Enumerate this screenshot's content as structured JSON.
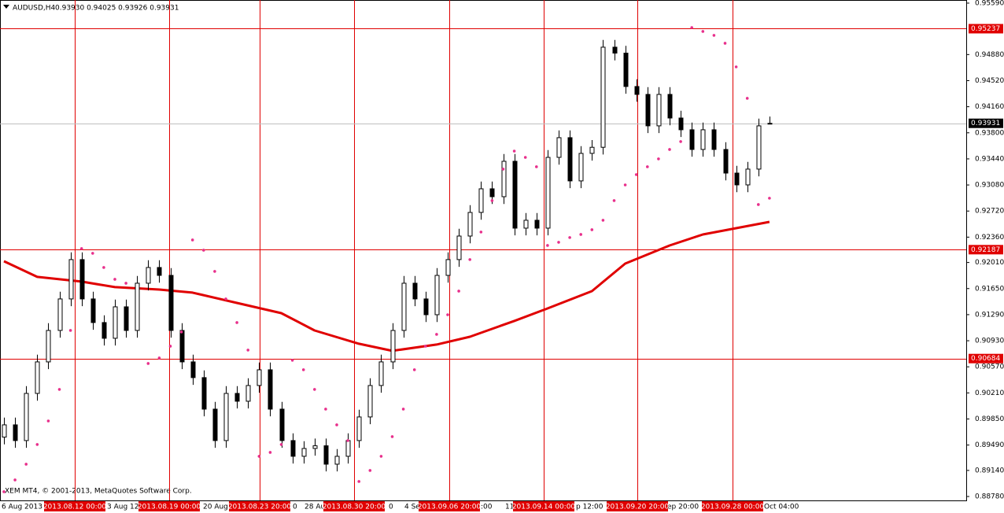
{
  "chart_data": {
    "type": "candlestick",
    "title": "AUDUSD,H4",
    "header_values": "0.93930 0.94025 0.93926 0.93931",
    "watermark": "XEM MT4, © 2001-2013, MetaQuotes Software Corp.",
    "open": [
      0.896,
      0.89769,
      0.89552,
      0.90203,
      0.90638,
      0.91072,
      0.91507,
      0.9205,
      0.91507,
      0.91181,
      0.90964,
      0.91398,
      0.91072,
      0.91724,
      0.91941,
      0.91832,
      0.91072,
      0.90638,
      0.90421,
      0.89986,
      0.89552,
      0.90203,
      0.90095,
      0.90312,
      0.90529,
      0.89986,
      0.89552,
      0.89335,
      0.89443,
      0.8948,
      0.89226,
      0.89335,
      0.89552,
      0.89878,
      0.90312,
      0.90638,
      0.91072,
      0.91724,
      0.91507,
      0.91289,
      0.91832,
      0.9205,
      0.92375,
      0.92701,
      0.93027,
      0.92918,
      0.93407,
      0.92484,
      0.92593,
      0.92484,
      0.93461,
      0.93733,
      0.93136,
      0.93516,
      0.936,
      0.94982,
      0.949,
      0.94439,
      0.9433,
      0.93896,
      0.9433,
      0.94004,
      0.93842,
      0.9357,
      0.93842,
      0.9357,
      0.93244,
      0.93081,
      0.93299,
      0.9393
    ],
    "high": [
      0.89869,
      0.89869,
      0.90303,
      0.90738,
      0.91172,
      0.91607,
      0.9215,
      0.9215,
      0.91607,
      0.91281,
      0.91498,
      0.91498,
      0.91824,
      0.92041,
      0.92041,
      0.91932,
      0.91172,
      0.90738,
      0.90521,
      0.90086,
      0.90303,
      0.90303,
      0.90412,
      0.90629,
      0.90629,
      0.90086,
      0.89652,
      0.89543,
      0.8958,
      0.8958,
      0.89435,
      0.89652,
      0.89978,
      0.90412,
      0.90738,
      0.91172,
      0.91824,
      0.91824,
      0.91607,
      0.91932,
      0.9215,
      0.92475,
      0.92801,
      0.93127,
      0.93127,
      0.93507,
      0.93507,
      0.92693,
      0.92693,
      0.93561,
      0.93833,
      0.93833,
      0.93616,
      0.937,
      0.95082,
      0.95082,
      0.95,
      0.94539,
      0.9443,
      0.9443,
      0.9443,
      0.94104,
      0.93942,
      0.93942,
      0.93942,
      0.9367,
      0.93344,
      0.93399,
      0.93996,
      0.94025
    ],
    "low": [
      0.895,
      0.89452,
      0.89452,
      0.90103,
      0.90538,
      0.90972,
      0.91407,
      0.91407,
      0.91081,
      0.90864,
      0.90864,
      0.90972,
      0.90972,
      0.91624,
      0.91732,
      0.90972,
      0.90538,
      0.90321,
      0.89886,
      0.89452,
      0.89452,
      0.89995,
      0.89995,
      0.90212,
      0.89886,
      0.89452,
      0.89235,
      0.89235,
      0.89343,
      0.89126,
      0.89126,
      0.89235,
      0.89452,
      0.89778,
      0.90212,
      0.90538,
      0.90972,
      0.91407,
      0.91189,
      0.91189,
      0.91732,
      0.9195,
      0.92275,
      0.92601,
      0.92818,
      0.92818,
      0.92384,
      0.92384,
      0.92384,
      0.92384,
      0.93361,
      0.93036,
      0.93036,
      0.93416,
      0.935,
      0.948,
      0.94339,
      0.9423,
      0.93796,
      0.93796,
      0.93904,
      0.93742,
      0.9347,
      0.9347,
      0.9347,
      0.93144,
      0.92981,
      0.92981,
      0.93199,
      0.93926
    ],
    "close": [
      0.89769,
      0.89552,
      0.90203,
      0.90638,
      0.91072,
      0.91507,
      0.9205,
      0.91507,
      0.91181,
      0.90964,
      0.91398,
      0.91072,
      0.91724,
      0.91941,
      0.91832,
      0.91072,
      0.90638,
      0.90421,
      0.89986,
      0.89552,
      0.90203,
      0.90095,
      0.90312,
      0.90529,
      0.89986,
      0.89552,
      0.89335,
      0.89443,
      0.8948,
      0.89226,
      0.89335,
      0.89552,
      0.89878,
      0.90312,
      0.90638,
      0.91072,
      0.91724,
      0.91507,
      0.91289,
      0.91832,
      0.9205,
      0.92375,
      0.92701,
      0.93027,
      0.92918,
      0.93407,
      0.92484,
      0.92593,
      0.92484,
      0.93461,
      0.93733,
      0.93136,
      0.93516,
      0.936,
      0.94982,
      0.949,
      0.94439,
      0.9433,
      0.93896,
      0.9433,
      0.94004,
      0.93842,
      0.9357,
      0.93842,
      0.9357,
      0.93244,
      0.93081,
      0.93299,
      0.93896,
      0.93931
    ],
    "sar": [
      0.88846,
      0.89009,
      0.89226,
      0.89498,
      0.89823,
      0.90258,
      0.91072,
      0.92202,
      0.92137,
      0.91941,
      0.91778,
      0.91724,
      null,
      0.90616,
      0.90692,
      0.90855,
      0.91051,
      0.92321,
      0.9218,
      0.91887,
      0.91507,
      0.91181,
      0.90801,
      0.89335,
      0.89389,
      0.89498,
      0.9066,
      0.90529,
      0.90258,
      0.89986,
      0.89769,
      0.89552,
      0.88987,
      0.89139,
      0.89335,
      0.89606,
      0.89986,
      0.90529,
      0.90855,
      0.91018,
      0.91289,
      0.91615,
      0.9205,
      0.9243,
      0.92864,
      0.93299,
      0.93548,
      0.93461,
      0.93331,
      0.92245,
      0.92289,
      0.92354,
      0.92397,
      0.92462,
      0.92593,
      0.92864,
      0.93081,
      0.93223,
      0.93331,
      0.9344,
      0.9357,
      0.93679,
      0.95253,
      0.95199,
      0.95145,
      0.95036,
      0.9471,
      0.94276,
      0.9281,
      0.92897
    ],
    "sar_color": "#e8308c",
    "ma": {
      "x": [
        0,
        3,
        7,
        10,
        14,
        17,
        21,
        25,
        28,
        32,
        35,
        39,
        42,
        46,
        49,
        53,
        56,
        60,
        63,
        69
      ],
      "values": [
        0.92028,
        0.91811,
        0.91746,
        0.9167,
        0.91637,
        0.91594,
        0.91452,
        0.91311,
        0.91072,
        0.90888,
        0.9079,
        0.90877,
        0.90985,
        0.91203,
        0.91376,
        0.91615,
        0.91995,
        0.92245,
        0.92397,
        0.92571
      ],
      "color": "#e00000"
    },
    "levels": [
      0.95237,
      0.92187,
      0.90684
    ],
    "level_color": "#e00000",
    "last_price": 0.93931,
    "ylim": [
      0.88726,
      0.95633
    ],
    "yticks": [
      {
        "value": 0.9559,
        "label": "0.95590"
      },
      {
        "value": 0.9488,
        "label": "0.94880"
      },
      {
        "value": 0.9452,
        "label": "0.94520"
      },
      {
        "value": 0.9416,
        "label": "0.94160"
      },
      {
        "value": 0.938,
        "label": "0.93800"
      },
      {
        "value": 0.9344,
        "label": "0.93440"
      },
      {
        "value": 0.9308,
        "label": "0.93080"
      },
      {
        "value": 0.9272,
        "label": "0.92720"
      },
      {
        "value": 0.9236,
        "label": "0.92360"
      },
      {
        "value": 0.9201,
        "label": "0.92010"
      },
      {
        "value": 0.9165,
        "label": "0.91650"
      },
      {
        "value": 0.9129,
        "label": "0.91290"
      },
      {
        "value": 0.9093,
        "label": "0.90930"
      },
      {
        "value": 0.9057,
        "label": "0.90570"
      },
      {
        "value": 0.9021,
        "label": "0.90210"
      },
      {
        "value": 0.8985,
        "label": "0.89850"
      },
      {
        "value": 0.8949,
        "label": "0.89490"
      },
      {
        "value": 0.8914,
        "label": "0.89140"
      },
      {
        "value": 0.8878,
        "label": "0.88780"
      }
    ],
    "time_labels": [
      "6 Aug 2013",
      "3 Aug 12:",
      "20 Aug",
      "0",
      "28 Au",
      "0",
      "4 Se",
      ":00",
      "11",
      "p 12:00",
      "ep 20:00",
      "Oct 04:00"
    ],
    "vlines": [
      "2013.08.12 00:00",
      "2013.08.19 00:00",
      "2013.08.23 20:00",
      "2013.08.30 20:00",
      "2013.09.06 20:00",
      "2013.09.14 00:00",
      "2013.09.20 20:00",
      "2013.09.28 00:00"
    ]
  }
}
